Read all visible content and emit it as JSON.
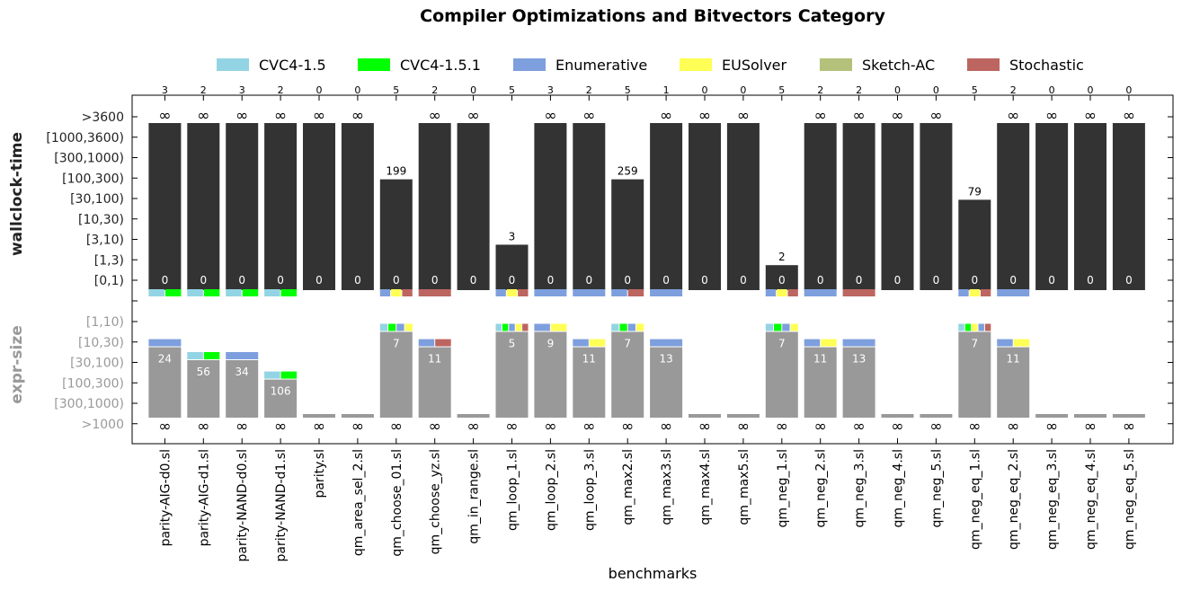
{
  "chart_data": {
    "type": "bar",
    "title": "Compiler Optimizations and Bitvectors Category",
    "xlabel": "benchmarks",
    "ylabel_top": "wallclock-time",
    "ylabel_bottom": "expr-size",
    "infinity_symbol": "∞",
    "legend": [
      {
        "name": "CVC4-1.5",
        "color": "#93D4E4"
      },
      {
        "name": "CVC4-1.5.1",
        "color": "#00FF00"
      },
      {
        "name": "Enumerative",
        "color": "#7E9FDD"
      },
      {
        "name": "EUSolver",
        "color": "#FFFF55"
      },
      {
        "name": "Sketch-AC",
        "color": "#B3C17A"
      },
      {
        "name": "Stochastic",
        "color": "#BD6560"
      }
    ],
    "time_levels": [
      "[0,1)",
      "[1,3)",
      "[3,10)",
      "[10,30)",
      "[30,100)",
      "[100,300)",
      "[300,1000)",
      "[1000,3600)",
      ">3600"
    ],
    "size_levels": [
      "[1,10)",
      "[10,30)",
      "[30,100)",
      "[100,300)",
      "[300,1000)",
      ">1000"
    ],
    "categories": [
      "parity-AIG-d0.sl",
      "parity-AIG-d1.sl",
      "parity-NAND-d0.sl",
      "parity-NAND-d1.sl",
      "parity.sl",
      "qm_area_sel_2.sl",
      "qm_choose_01.sl",
      "qm_choose_yz.sl",
      "qm_in_range.sl",
      "qm_loop_1.sl",
      "qm_loop_2.sl",
      "qm_loop_3.sl",
      "qm_max2.sl",
      "qm_max3.sl",
      "qm_max4.sl",
      "qm_max5.sl",
      "qm_neg_1.sl",
      "qm_neg_2.sl",
      "qm_neg_3.sl",
      "qm_neg_4.sl",
      "qm_neg_5.sl",
      "qm_neg_eq_1.sl",
      "qm_neg_eq_2.sl",
      "qm_neg_eq_3.sl",
      "qm_neg_eq_4.sl",
      "qm_neg_eq_5.sl"
    ],
    "solved_counts": [
      3,
      2,
      3,
      2,
      0,
      0,
      5,
      2,
      0,
      5,
      3,
      2,
      5,
      1,
      0,
      0,
      5,
      2,
      2,
      0,
      0,
      5,
      2,
      0,
      0,
      0
    ],
    "time_fill_level": [
      8,
      8,
      8,
      8,
      8,
      8,
      5.4,
      8,
      8,
      2.2,
      8,
      8,
      5.4,
      8,
      8,
      8,
      1.2,
      8,
      8,
      8,
      8,
      4.4,
      8,
      8,
      8,
      8
    ],
    "time_top_label": [
      "∞",
      "∞",
      "∞",
      "∞",
      "∞",
      "∞",
      "199",
      "∞",
      "∞",
      "3",
      "∞",
      "∞",
      "259",
      "∞",
      "∞",
      "∞",
      "2",
      "∞",
      "∞",
      "∞",
      "∞",
      "79",
      "∞",
      "∞",
      "∞",
      "∞"
    ],
    "time_bottom_label": [
      "0",
      "0",
      "0",
      "0",
      "0",
      "0",
      "0",
      "0",
      "0",
      "0",
      "0",
      "0",
      "0",
      "0",
      "0",
      "0",
      "0",
      "0",
      "0",
      "0",
      "0",
      "0",
      "0",
      "0",
      "0",
      "0"
    ],
    "fastest_solvers": [
      [
        "CVC4-1.5",
        "CVC4-1.5.1"
      ],
      [
        "CVC4-1.5",
        "CVC4-1.5.1"
      ],
      [
        "CVC4-1.5",
        "CVC4-1.5.1"
      ],
      [
        "CVC4-1.5",
        "CVC4-1.5.1"
      ],
      [],
      [],
      [
        "Enumerative",
        "EUSolver",
        "Stochastic"
      ],
      [
        "Stochastic"
      ],
      [],
      [
        "Enumerative",
        "EUSolver",
        "Stochastic"
      ],
      [
        "Enumerative"
      ],
      [
        "Enumerative"
      ],
      [
        "Enumerative",
        "Stochastic"
      ],
      [
        "Enumerative"
      ],
      [],
      [],
      [
        "Enumerative",
        "EUSolver",
        "Stochastic"
      ],
      [
        "Enumerative"
      ],
      [
        "Stochastic"
      ],
      [],
      [],
      [
        "Enumerative",
        "EUSolver",
        "Stochastic"
      ],
      [
        "Enumerative"
      ],
      [],
      [],
      []
    ],
    "size_fill_level": [
      4.6,
      3.8,
      3.8,
      2.6,
      0,
      0,
      5.55,
      4.6,
      0,
      5.55,
      5.55,
      4.6,
      5.55,
      4.6,
      0,
      0,
      5.55,
      4.6,
      4.6,
      0,
      0,
      5.55,
      4.6,
      0,
      0,
      0
    ],
    "size_value_label": [
      "24",
      "56",
      "34",
      "106",
      "",
      "",
      "7",
      "11",
      "",
      "5",
      "9",
      "11",
      "7",
      "13",
      "",
      "",
      "7",
      "11",
      "13",
      "",
      "",
      "7",
      "11",
      "",
      "",
      ""
    ],
    "smallest_solvers": [
      [
        "Enumerative"
      ],
      [
        "CVC4-1.5",
        "CVC4-1.5.1"
      ],
      [
        "Enumerative"
      ],
      [
        "CVC4-1.5",
        "CVC4-1.5.1"
      ],
      [],
      [],
      [
        "CVC4-1.5",
        "CVC4-1.5.1",
        "Enumerative",
        "EUSolver"
      ],
      [
        "Enumerative",
        "Stochastic"
      ],
      [],
      [
        "CVC4-1.5",
        "CVC4-1.5.1",
        "Enumerative",
        "EUSolver",
        "Stochastic"
      ],
      [
        "Enumerative",
        "EUSolver"
      ],
      [
        "Enumerative",
        "EUSolver"
      ],
      [
        "CVC4-1.5",
        "CVC4-1.5.1",
        "Enumerative",
        "EUSolver"
      ],
      [
        "Enumerative"
      ],
      [],
      [],
      [
        "CVC4-1.5",
        "CVC4-1.5.1",
        "Enumerative",
        "EUSolver"
      ],
      [
        "Enumerative",
        "EUSolver"
      ],
      [
        "Enumerative"
      ],
      [],
      [],
      [
        "CVC4-1.5",
        "CVC4-1.5.1",
        "EUSolver",
        "Enumerative",
        "Stochastic"
      ],
      [
        "Enumerative",
        "EUSolver"
      ],
      [],
      [],
      []
    ]
  }
}
